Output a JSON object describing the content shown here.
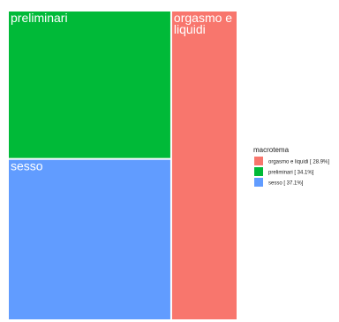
{
  "chart_data": {
    "type": "treemap",
    "legend_title": "macrotema",
    "legend_position": "right",
    "items": [
      {
        "name": "orgasmo e liquidi",
        "tile_label": [
          "orgasmo e",
          "liquidi"
        ],
        "percent": 28.9,
        "legend_text": "orgasmo e liquidi [ 28.9%]",
        "color": "#f8766d"
      },
      {
        "name": "preliminari",
        "tile_label": [
          "preliminari"
        ],
        "percent": 34.1,
        "legend_text": "preliminari [ 34.1%]",
        "color": "#00ba38"
      },
      {
        "name": "sesso",
        "tile_label": [
          "sesso"
        ],
        "percent": 37.1,
        "legend_text": "sesso [ 37.1%]",
        "color": "#619cff"
      }
    ]
  }
}
